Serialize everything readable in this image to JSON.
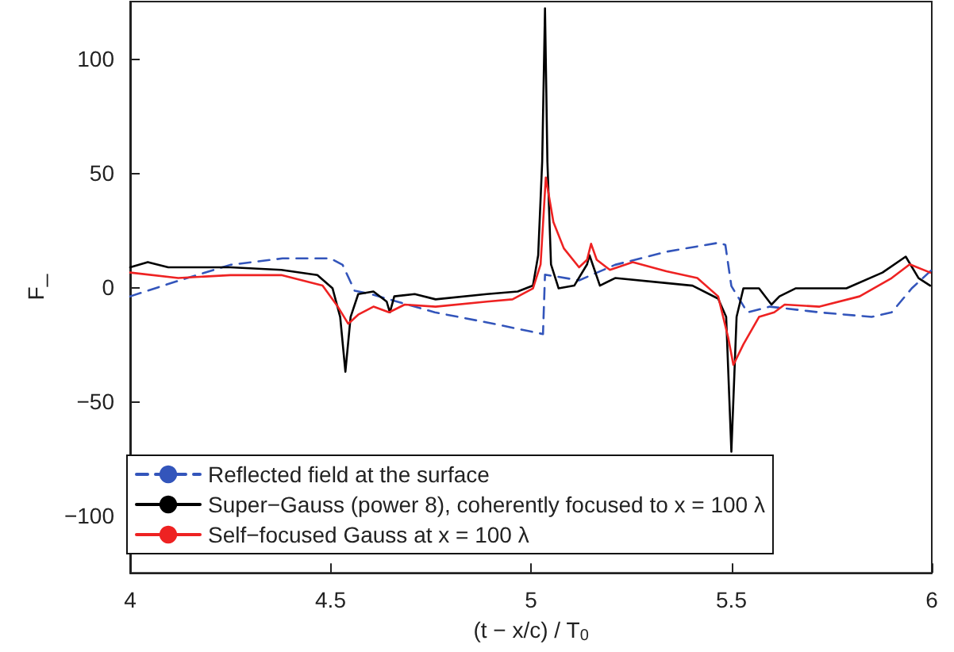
{
  "chart_data": {
    "type": "line",
    "xlabel": "(t − x/c) / T$_{0}$",
    "ylabel": "F_",
    "xlim": [
      4,
      6
    ],
    "ylim": [
      -125,
      125
    ],
    "xticks": [
      4,
      4.5,
      5,
      5.5,
      6
    ],
    "yticks": [
      -100,
      -50,
      0,
      50,
      100
    ],
    "grid": false,
    "legend": "bottom left",
    "marker": "none",
    "series": [
      {
        "name": "Reflected field at the surface",
        "color": "#3355bb",
        "line_style": "dashed",
        "x": [
          4.0,
          4.12,
          4.25,
          4.38,
          4.5,
          4.53,
          4.56,
          4.6,
          4.76,
          4.89,
          5.03,
          5.035,
          5.12,
          5.21,
          5.34,
          5.47,
          5.485,
          5.5,
          5.54,
          5.596,
          5.72,
          5.85,
          5.9,
          5.95,
          6.0
        ],
        "values": [
          -4,
          2.8,
          9.8,
          12.6,
          12.6,
          9.8,
          -1.5,
          -3,
          -11,
          -15.4,
          -20.5,
          5.5,
          3,
          9.8,
          15.6,
          19.5,
          18.5,
          0.5,
          -11,
          -8.5,
          -11,
          -13,
          -11,
          -0.5,
          7.6
        ]
      },
      {
        "name": "Super−Gauss (power 8), coherently focused to x = 100 λ",
        "color": "#000000",
        "line_style": "solid",
        "x": [
          4.0,
          4.044,
          4.095,
          4.25,
          4.377,
          4.467,
          4.505,
          4.524,
          4.537,
          4.55,
          4.569,
          4.607,
          4.64,
          4.648,
          4.659,
          4.71,
          4.762,
          4.89,
          4.967,
          5.005,
          5.018,
          5.028,
          5.035,
          5.041,
          5.05,
          5.069,
          5.108,
          5.14,
          5.146,
          5.172,
          5.21,
          5.338,
          5.403,
          5.467,
          5.487,
          5.5,
          5.513,
          5.53,
          5.569,
          5.6,
          5.62,
          5.66,
          5.787,
          5.877,
          5.935,
          5.967,
          5.996
        ],
        "values": [
          8.7,
          11,
          8.7,
          8.7,
          7.6,
          5.3,
          -0.5,
          -13,
          -37,
          -13,
          -3,
          -1.9,
          -6.3,
          -11,
          -4,
          -3,
          -5.3,
          -3,
          -1.9,
          0.7,
          14,
          55,
          122,
          55,
          10,
          -0.5,
          0.7,
          10,
          14,
          0.7,
          4,
          1.8,
          0.7,
          -5,
          -13,
          -72,
          -13,
          -0.5,
          -0.5,
          -7.6,
          -4,
          -0.5,
          -0.5,
          6.4,
          13.4,
          4,
          0.7
        ]
      },
      {
        "name": "Self−focused Gauss at x = 100 λ",
        "color": "#ee2222",
        "line_style": "solid",
        "x": [
          4.0,
          4.12,
          4.25,
          4.377,
          4.48,
          4.518,
          4.544,
          4.569,
          4.607,
          4.646,
          4.685,
          4.762,
          4.89,
          4.954,
          5.005,
          5.024,
          5.037,
          5.056,
          5.082,
          5.12,
          5.14,
          5.15,
          5.164,
          5.197,
          5.254,
          5.338,
          5.415,
          5.467,
          5.492,
          5.505,
          5.53,
          5.569,
          5.607,
          5.633,
          5.72,
          5.82,
          5.9,
          5.945,
          5.996
        ],
        "values": [
          6.4,
          4,
          5.3,
          5.3,
          0.7,
          -8.5,
          -16,
          -12,
          -8.5,
          -11,
          -7.6,
          -8.5,
          -6.3,
          -5.3,
          -0.5,
          10,
          48,
          28.5,
          17,
          8.7,
          12,
          19,
          12,
          7.6,
          11,
          7,
          4,
          -4,
          -22,
          -34,
          -25,
          -13,
          -11,
          -7.6,
          -8.5,
          -4,
          4,
          10,
          6.4
        ]
      }
    ]
  }
}
